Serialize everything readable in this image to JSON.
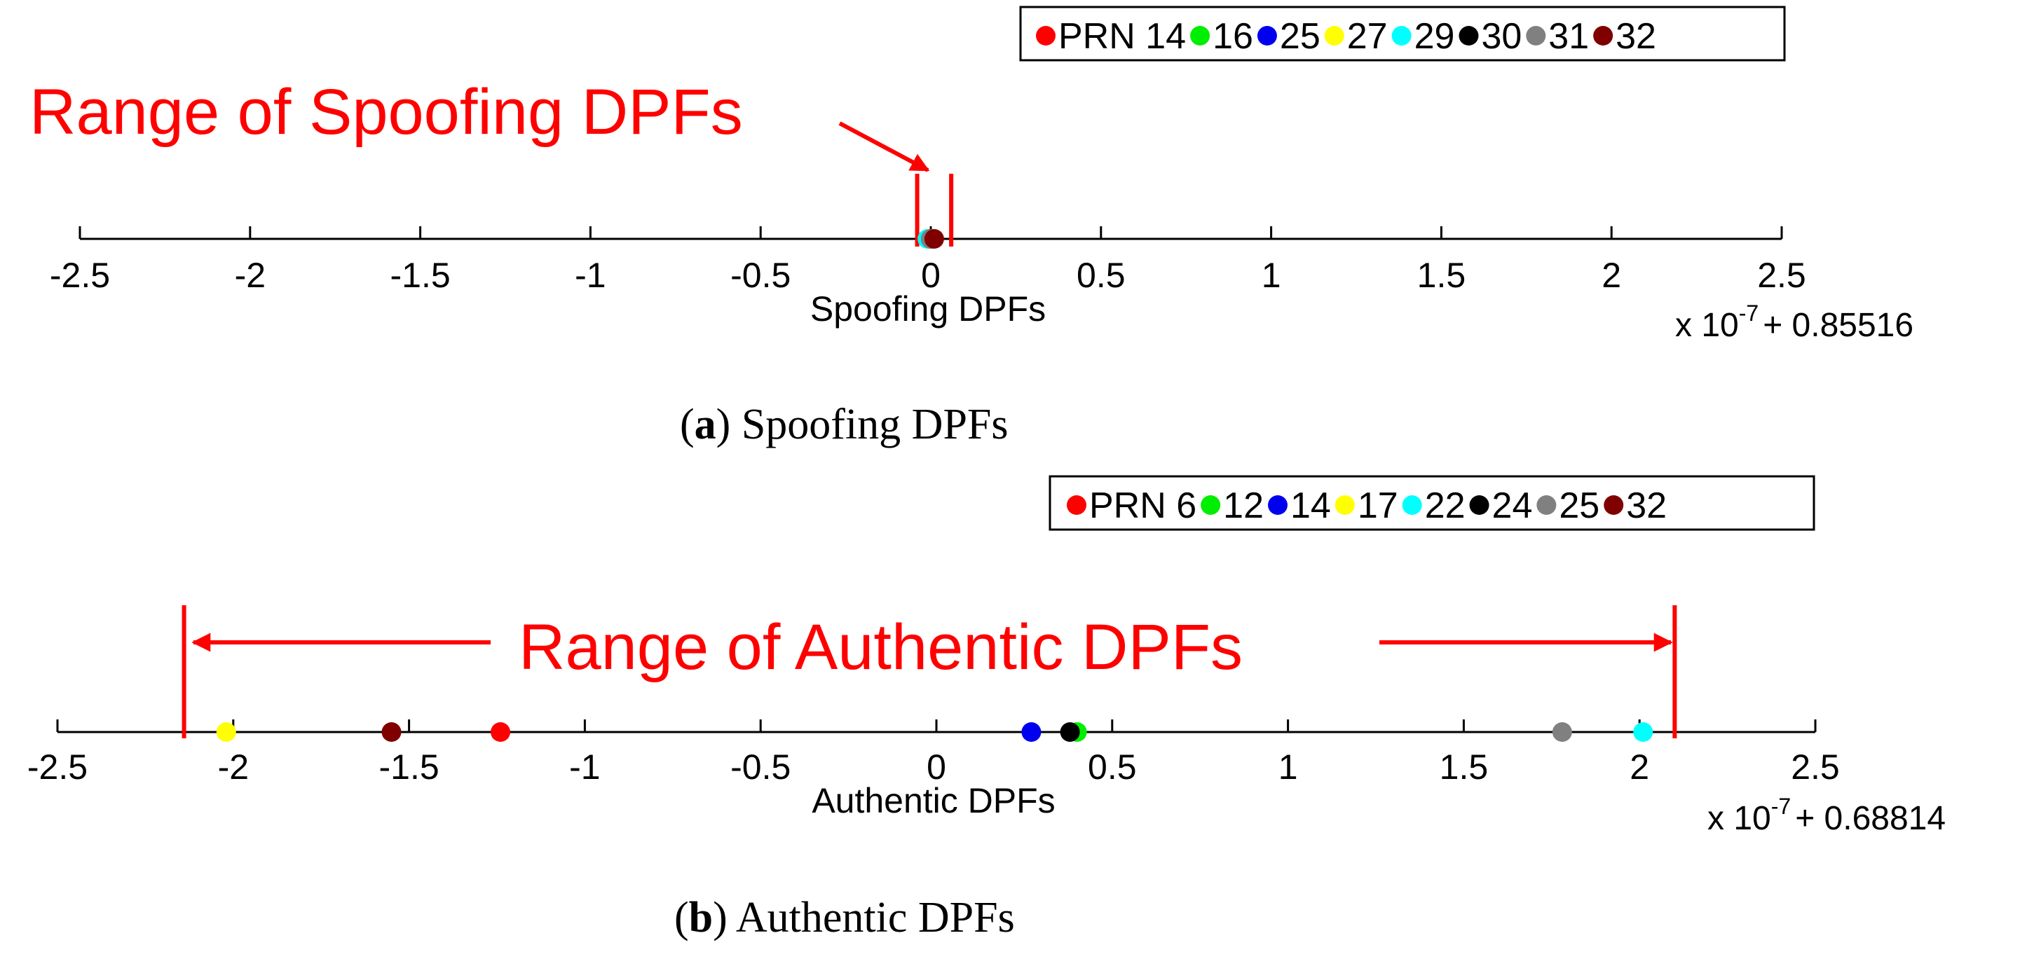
{
  "panel_a": {
    "caption_letter": "a",
    "caption_text": " Spoofing DPFs",
    "annotation": "Range of Spoofing DPFs",
    "legend": {
      "prefix": "PRN ",
      "entries": [
        {
          "label": "14",
          "color": "#ff0000"
        },
        {
          "label": "16",
          "color": "#00ee00"
        },
        {
          "label": "25",
          "color": "#0000ee"
        },
        {
          "label": "27",
          "color": "#ffff00"
        },
        {
          "label": "29",
          "color": "#00ffff"
        },
        {
          "label": "30",
          "color": "#000000"
        },
        {
          "label": "31",
          "color": "#808080"
        },
        {
          "label": "32",
          "color": "#800000"
        }
      ]
    }
  },
  "panel_b": {
    "caption_letter": "b",
    "caption_text": " Authentic DPFs",
    "annotation": "Range of Authentic DPFs",
    "legend": {
      "prefix": "PRN ",
      "entries": [
        {
          "label": "6",
          "color": "#ff0000"
        },
        {
          "label": "12",
          "color": "#00ee00"
        },
        {
          "label": "14",
          "color": "#0000ee"
        },
        {
          "label": "17",
          "color": "#ffff00"
        },
        {
          "label": "22",
          "color": "#00ffff"
        },
        {
          "label": "24",
          "color": "#000000"
        },
        {
          "label": "25",
          "color": "#808080"
        },
        {
          "label": "32",
          "color": "#800000"
        }
      ]
    }
  },
  "chart_data": [
    {
      "type": "scatter",
      "title": "",
      "xlabel": "Spoofing DPFs",
      "ylabel": "",
      "xlim": [
        -2.5,
        2.5
      ],
      "ticks": [
        -2.5,
        -2,
        -1.5,
        -1,
        -0.5,
        0,
        0.5,
        1,
        1.5,
        2,
        2.5
      ],
      "tick_labels": [
        "-2.5",
        "-2",
        "-1.5",
        "-1",
        "-0.5",
        "0",
        "0.5",
        "1",
        "1.5",
        "2",
        "2.5"
      ],
      "multiplier": {
        "base": "x 10",
        "exponent": "-7",
        "offset": "+ 0.85516"
      },
      "range_markers": [
        -0.04,
        0.06
      ],
      "series": [
        {
          "name": "14",
          "color": "#ff0000",
          "x": 0.0
        },
        {
          "name": "16",
          "color": "#00ee00",
          "x": 0.0
        },
        {
          "name": "25",
          "color": "#0000ee",
          "x": 0.0
        },
        {
          "name": "27",
          "color": "#ffff00",
          "x": 0.0
        },
        {
          "name": "29",
          "color": "#00ffff",
          "x": -0.01
        },
        {
          "name": "30",
          "color": "#000000",
          "x": 0.0
        },
        {
          "name": "31",
          "color": "#808080",
          "x": 0.0
        },
        {
          "name": "32",
          "color": "#800000",
          "x": 0.01
        }
      ]
    },
    {
      "type": "scatter",
      "title": "",
      "xlabel": "Authentic DPFs",
      "ylabel": "",
      "xlim": [
        -2.5,
        2.5
      ],
      "ticks": [
        -2.5,
        -2,
        -1.5,
        -1,
        -0.5,
        0,
        0.5,
        1,
        1.5,
        2,
        2.5
      ],
      "tick_labels": [
        "-2.5",
        "-2",
        "-1.5",
        "-1",
        "-0.5",
        "0",
        "0.5",
        "1",
        "1.5",
        "2",
        "2.5"
      ],
      "multiplier": {
        "base": "x 10",
        "exponent": "-7",
        "offset": "+ 0.68814"
      },
      "range_markers": [
        -2.14,
        2.1
      ],
      "series": [
        {
          "name": "6",
          "color": "#ff0000",
          "x": -1.24
        },
        {
          "name": "12",
          "color": "#00ee00",
          "x": 0.4
        },
        {
          "name": "14",
          "color": "#0000ee",
          "x": 0.27
        },
        {
          "name": "17",
          "color": "#ffff00",
          "x": -2.02
        },
        {
          "name": "22",
          "color": "#00ffff",
          "x": 2.01
        },
        {
          "name": "24",
          "color": "#000000",
          "x": 0.38
        },
        {
          "name": "25",
          "color": "#808080",
          "x": 1.78
        },
        {
          "name": "32",
          "color": "#800000",
          "x": -1.55
        }
      ]
    }
  ]
}
